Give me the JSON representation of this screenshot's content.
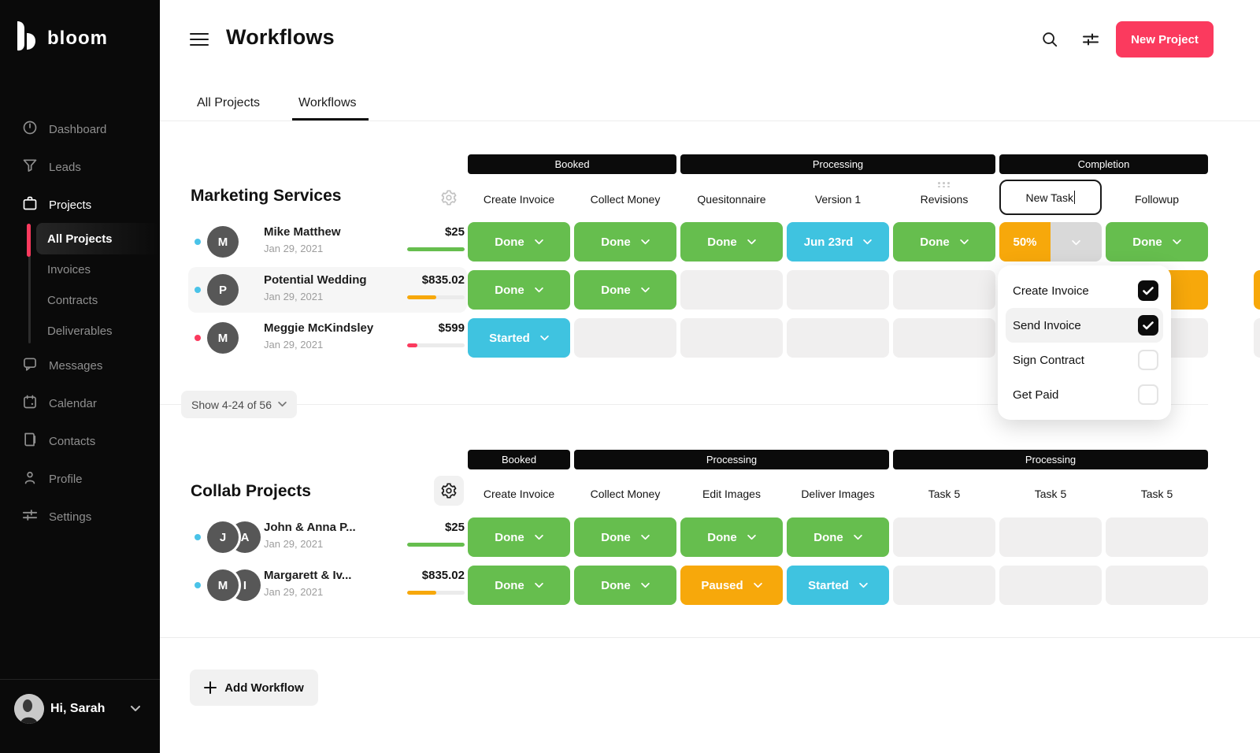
{
  "colors": {
    "accent": "#fb3a5e",
    "green": "#66be4e",
    "blue": "#3fc3e0",
    "orange": "#f7a80b",
    "empty_cell": "#f0efef",
    "blue_dot": "#4ac3e8",
    "red_dot": "#fb3a5e",
    "sidebar_bg": "#0a0a0a"
  },
  "sidebar": {
    "brand": "bloom",
    "items_top": [
      {
        "label": "Dashboard",
        "icon": "dashboard-icon",
        "active": false
      },
      {
        "label": "Leads",
        "icon": "leads-icon",
        "active": false
      },
      {
        "label": "Projects",
        "icon": "projects-icon",
        "active": true
      }
    ],
    "project_subitems": [
      {
        "label": "All Projects",
        "active": true
      },
      {
        "label": "Invoices",
        "active": false
      },
      {
        "label": "Contracts",
        "active": false
      },
      {
        "label": "Deliverables",
        "active": false
      }
    ],
    "items_bottom": [
      {
        "label": "Messages",
        "icon": "messages-icon"
      },
      {
        "label": "Calendar",
        "icon": "calendar-icon"
      },
      {
        "label": "Contacts",
        "icon": "contacts-icon"
      },
      {
        "label": "Profile",
        "icon": "profile-icon"
      },
      {
        "label": "Settings",
        "icon": "settings-icon"
      }
    ],
    "user": {
      "greeting": "Hi, Sarah"
    }
  },
  "header": {
    "title": "Workflows",
    "new_project_label": "New Project"
  },
  "tabs": [
    {
      "label": "All Projects",
      "active": false
    },
    {
      "label": "Workflows",
      "active": true
    }
  ],
  "pagination": {
    "label": "Show 4-24 of 56"
  },
  "add_workflow_label": "Add Workflow",
  "dropdown": {
    "items": [
      {
        "label": "Create Invoice",
        "checked": true,
        "highlighted": false
      },
      {
        "label": "Send Invoice",
        "checked": true,
        "highlighted": true
      },
      {
        "label": "Sign Contract",
        "checked": false,
        "highlighted": false
      },
      {
        "label": "Get Paid",
        "checked": false,
        "highlighted": false
      }
    ]
  },
  "sections": [
    {
      "title": "Marketing Services",
      "groups": [
        {
          "label": "Booked",
          "span": 2
        },
        {
          "label": "Processing",
          "span": 3
        },
        {
          "label": "Completion",
          "span": 2
        }
      ],
      "columns": [
        {
          "label": "Create Invoice"
        },
        {
          "label": "Collect Money"
        },
        {
          "label": "Quesitonnaire"
        },
        {
          "label": "Version 1"
        },
        {
          "label": "Revisions",
          "drag_handle": true
        },
        {
          "label": "New Task",
          "editing": true
        },
        {
          "label": "Followup"
        }
      ],
      "rows": [
        {
          "dot": "blue",
          "initials": [
            "M"
          ],
          "name": "Mike Matthew",
          "date": "Jan 29, 2021",
          "amount": "$25",
          "progress": {
            "color": "green",
            "pct": 100
          },
          "highlighted": false,
          "cells": [
            {
              "type": "green",
              "label": "Done"
            },
            {
              "type": "green",
              "label": "Done"
            },
            {
              "type": "green",
              "label": "Done"
            },
            {
              "type": "blue",
              "label": "Jun 23rd"
            },
            {
              "type": "green",
              "label": "Done"
            },
            {
              "type": "split",
              "label": "50%"
            },
            {
              "type": "green",
              "label": "Done"
            }
          ]
        },
        {
          "dot": "blue",
          "initials": [
            "P"
          ],
          "name": "Potential Wedding",
          "date": "Jan 29, 2021",
          "amount": "$835.02",
          "progress": {
            "color": "orange",
            "pct": 50
          },
          "highlighted": true,
          "cells": [
            {
              "type": "green",
              "label": "Done"
            },
            {
              "type": "green",
              "label": "Done"
            },
            {
              "type": "empty"
            },
            {
              "type": "empty"
            },
            {
              "type": "empty"
            },
            {
              "type": "empty"
            },
            {
              "type": "orange",
              "label": ""
            }
          ]
        },
        {
          "dot": "red",
          "initials": [
            "M"
          ],
          "name": "Meggie McKindsley",
          "date": "Jan 29, 2021",
          "amount": "$599",
          "progress": {
            "color": "red",
            "pct": 18
          },
          "highlighted": false,
          "cells": [
            {
              "type": "blue",
              "label": "Started"
            },
            {
              "type": "empty"
            },
            {
              "type": "empty"
            },
            {
              "type": "empty"
            },
            {
              "type": "empty"
            },
            {
              "type": "empty"
            },
            {
              "type": "empty"
            }
          ]
        }
      ],
      "edge_slivers": [
        {
          "row": 1,
          "color": "orange"
        },
        {
          "row": 2,
          "color": "empty"
        }
      ]
    },
    {
      "title": "Collab Projects",
      "groups": [
        {
          "label": "Booked",
          "span": 1
        },
        {
          "label": "Processing",
          "span": 3
        },
        {
          "label": "Processing",
          "span": 3
        }
      ],
      "columns": [
        {
          "label": "Create Invoice"
        },
        {
          "label": "Collect Money"
        },
        {
          "label": "Edit Images"
        },
        {
          "label": "Deliver Images"
        },
        {
          "label": "Task 5"
        },
        {
          "label": "Task 5"
        },
        {
          "label": "Task 5"
        }
      ],
      "rows": [
        {
          "dot": "blue",
          "initials": [
            "J",
            "A"
          ],
          "name": "John & Anna P...",
          "date": "Jan 29, 2021",
          "amount": "$25",
          "progress": {
            "color": "green",
            "pct": 100
          },
          "highlighted": false,
          "cells": [
            {
              "type": "green",
              "label": "Done"
            },
            {
              "type": "green",
              "label": "Done"
            },
            {
              "type": "green",
              "label": "Done"
            },
            {
              "type": "green",
              "label": "Done"
            },
            {
              "type": "empty"
            },
            {
              "type": "empty"
            },
            {
              "type": "empty"
            }
          ]
        },
        {
          "dot": "blue",
          "initials": [
            "M",
            "I"
          ],
          "name": "Margarett & Iv...",
          "date": "Jan 29, 2021",
          "amount": "$835.02",
          "progress": {
            "color": "orange",
            "pct": 50
          },
          "highlighted": false,
          "cells": [
            {
              "type": "green",
              "label": "Done"
            },
            {
              "type": "green",
              "label": "Done"
            },
            {
              "type": "orange",
              "label": "Paused"
            },
            {
              "type": "blue",
              "label": "Started"
            },
            {
              "type": "empty"
            },
            {
              "type": "empty"
            },
            {
              "type": "empty"
            }
          ]
        }
      ],
      "edge_slivers": []
    }
  ]
}
